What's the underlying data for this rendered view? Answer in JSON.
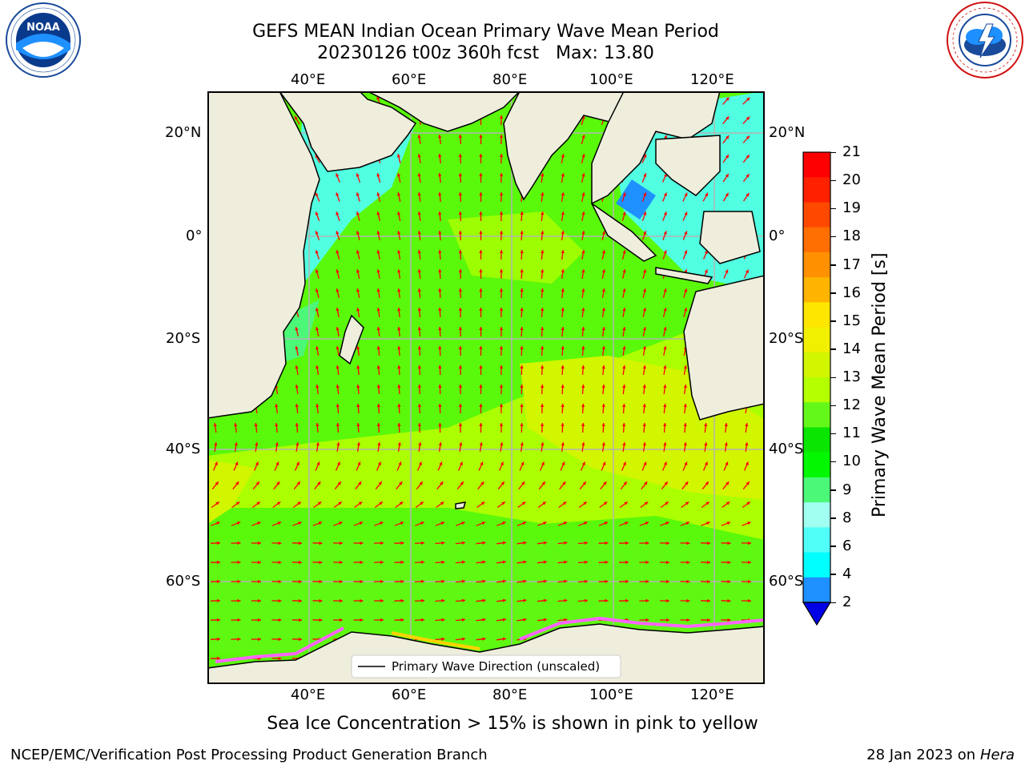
{
  "header": {
    "title_line1": "GEFS MEAN Indian Ocean Primary Wave Mean Period",
    "title_line2": "20230126 t00z 360h fcst   Max: 13.80"
  },
  "logos": {
    "left": {
      "icon": "noaa-logo",
      "text": "NOAA",
      "ring_text": "NATIONAL OCEANIC AND ATMOSPHERIC ADMINISTRATION · U.S. DEPARTMENT OF COMMERCE"
    },
    "right": {
      "icon": "national-weather-service-logo",
      "ring_text": "NATIONAL WEATHER SERVICE"
    }
  },
  "map": {
    "lon_ticks_top": [
      "40°E",
      "60°E",
      "80°E",
      "100°E",
      "120°E"
    ],
    "lon_ticks_bottom": [
      "40°E",
      "60°E",
      "80°E",
      "100°E",
      "120°E"
    ],
    "lat_ticks_left": [
      "20°N",
      "0°",
      "20°S",
      "40°S",
      "60°S"
    ],
    "lat_ticks_right": [
      "20°N",
      "0°",
      "20°S",
      "40°S",
      "60°S"
    ],
    "legend_label": "Primary Wave Direction (unscaled)",
    "colors": {
      "land": "#efeedd",
      "ocean_green": "#5af80a",
      "arrow": "#ff0000",
      "grid": "#b4b4b4"
    }
  },
  "colorbar": {
    "label": "Primary Wave Mean Period [s]",
    "ticks": [
      "21",
      "20",
      "19",
      "18",
      "17",
      "16",
      "15",
      "14",
      "13",
      "12",
      "11",
      "10",
      "9",
      "8",
      "6",
      "4",
      "2"
    ],
    "colors": [
      "#ff0000",
      "#ff2000",
      "#ff4800",
      "#ff6e00",
      "#ff9100",
      "#ffb400",
      "#ffe600",
      "#f0f000",
      "#d2f500",
      "#b4ff00",
      "#64f81a",
      "#0ae600",
      "#02f800",
      "#4cf878",
      "#a0fff0",
      "#50fff8",
      "#00ffff",
      "#1e90ff"
    ],
    "extend_color": "#0000e6"
  },
  "caption": "Sea Ice Concentration > 15% is shown in pink to yellow",
  "footer": {
    "left": "NCEP/EMC/Verification Post Processing Product Generation Branch",
    "right_date": "28 Jan 2023 on ",
    "right_machine": "Hera"
  }
}
